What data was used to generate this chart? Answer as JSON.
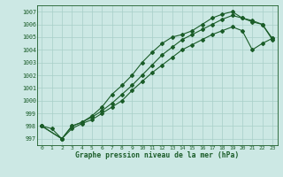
{
  "background_color": "#cce8e4",
  "grid_color": "#a8cfc8",
  "line_color": "#1a5c28",
  "title": "Graphe pression niveau de la mer (hPa)",
  "xlim": [
    -0.5,
    23.5
  ],
  "ylim": [
    996.5,
    1007.5
  ],
  "yticks": [
    997,
    998,
    999,
    1000,
    1001,
    1002,
    1003,
    1004,
    1005,
    1006,
    1007
  ],
  "xticks": [
    0,
    1,
    2,
    3,
    4,
    5,
    6,
    7,
    8,
    9,
    10,
    11,
    12,
    13,
    14,
    15,
    16,
    17,
    18,
    19,
    20,
    21,
    22,
    23
  ],
  "series1_x": [
    0,
    1,
    2,
    3,
    4,
    5,
    6,
    7,
    8,
    9,
    10,
    11,
    12,
    13,
    14,
    15,
    16,
    17,
    18,
    19,
    20,
    21,
    22,
    23
  ],
  "series1_y": [
    998.0,
    997.8,
    997.0,
    998.0,
    998.3,
    998.8,
    999.5,
    1000.5,
    1001.2,
    1002.0,
    1003.0,
    1003.8,
    1004.5,
    1005.0,
    1005.2,
    1005.5,
    1006.0,
    1006.5,
    1006.8,
    1007.0,
    1006.5,
    1006.3,
    1006.0,
    1004.9
  ],
  "series2_x": [
    0,
    2,
    3,
    4,
    5,
    6,
    7,
    8,
    9,
    10,
    11,
    12,
    13,
    14,
    15,
    16,
    17,
    18,
    19,
    20,
    21,
    22,
    23
  ],
  "series2_y": [
    998.0,
    997.0,
    998.0,
    998.3,
    998.7,
    999.2,
    999.8,
    1000.5,
    1001.2,
    1002.0,
    1002.8,
    1003.6,
    1004.2,
    1004.8,
    1005.2,
    1005.6,
    1006.0,
    1006.4,
    1006.7,
    1006.5,
    1006.2,
    1006.0,
    1004.8
  ],
  "series3_x": [
    0,
    2,
    3,
    4,
    5,
    6,
    7,
    8,
    9,
    10,
    11,
    12,
    13,
    14,
    15,
    16,
    17,
    18,
    19,
    20,
    21,
    22,
    23
  ],
  "series3_y": [
    998.0,
    997.0,
    997.8,
    998.2,
    998.5,
    999.0,
    999.5,
    1000.0,
    1000.8,
    1001.5,
    1002.2,
    1002.8,
    1003.4,
    1004.0,
    1004.4,
    1004.8,
    1005.2,
    1005.5,
    1005.8,
    1005.5,
    1004.0,
    1004.5,
    1004.9
  ]
}
